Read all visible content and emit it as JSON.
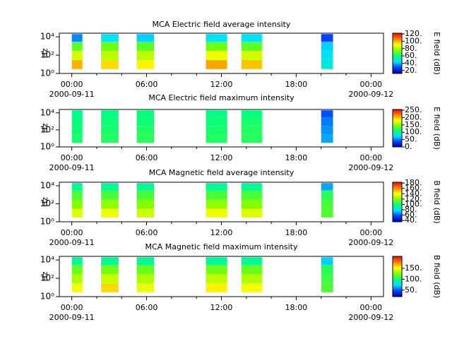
{
  "chart_data": [
    {
      "type": "spectrogram",
      "title": "MCA  Electric field average intensity",
      "ylabel": "Hz",
      "colorbar_label": "E field (dB)",
      "xlim": [
        -1,
        25
      ],
      "xticks": [
        {
          "value": 0,
          "label": "00:00"
        },
        {
          "value": 6,
          "label": "06:00"
        },
        {
          "value": 12,
          "label": "12:00"
        },
        {
          "value": 18,
          "label": "18:00"
        },
        {
          "value": 24,
          "label": "00:00"
        }
      ],
      "x_minor_ticks": [
        2,
        4,
        8,
        10,
        14,
        16,
        20,
        22
      ],
      "x_date_labels": [
        {
          "value": 0,
          "label": "2000-09-11"
        },
        {
          "value": 24,
          "label": "2000-09-12"
        }
      ],
      "ylim": [
        1,
        25000
      ],
      "yticks": [
        {
          "value": 1,
          "label": "10⁰"
        },
        {
          "value": 100,
          "label": "10²"
        },
        {
          "value": 10000,
          "label": "10⁴"
        }
      ],
      "clim": [
        12,
        122
      ],
      "cticks": [
        {
          "value": 20,
          "label": "20."
        },
        {
          "value": 40,
          "label": "40."
        },
        {
          "value": 60,
          "label": "60."
        },
        {
          "value": 80,
          "label": "80."
        },
        {
          "value": 100,
          "label": "100."
        },
        {
          "value": 120,
          "label": "120."
        }
      ],
      "colormap": [
        "#0000b0",
        "#0040ff",
        "#00e0ff",
        "#00ff80",
        "#80ff00",
        "#ffff00",
        "#ff8000",
        "#ff0000"
      ],
      "blocks": [
        [
          0,
          0.85
        ],
        [
          2.35,
          3.75
        ],
        [
          5.2,
          6.6
        ],
        [
          10.75,
          12.45
        ],
        [
          13.6,
          15.25
        ],
        [
          20,
          20.95
        ]
      ],
      "y_bins": [
        3,
        30,
        300,
        3000,
        20000
      ],
      "values": [
        [
          100,
          85,
          70,
          35
        ],
        [
          95,
          82,
          72,
          45
        ],
        [
          92,
          82,
          70,
          42
        ],
        [
          102,
          88,
          72,
          45
        ],
        [
          98,
          85,
          70,
          45
        ],
        [
          48,
          45,
          42,
          28
        ]
      ]
    },
    {
      "type": "spectrogram",
      "title": "MCA  Electric field maximum intensity",
      "ylabel": "Hz",
      "colorbar_label": "E field (dB)",
      "xlim": [
        -1,
        25
      ],
      "xticks": [
        {
          "value": 0,
          "label": "00:00"
        },
        {
          "value": 6,
          "label": "06:00"
        },
        {
          "value": 12,
          "label": "12:00"
        },
        {
          "value": 18,
          "label": "18:00"
        },
        {
          "value": 24,
          "label": "00:00"
        }
      ],
      "x_minor_ticks": [
        2,
        4,
        8,
        10,
        14,
        16,
        20,
        22
      ],
      "x_date_labels": [
        {
          "value": 0,
          "label": "2000-09-11"
        },
        {
          "value": 24,
          "label": "2000-09-12"
        }
      ],
      "ylim": [
        1,
        25000
      ],
      "yticks": [
        {
          "value": 1,
          "label": "10⁰"
        },
        {
          "value": 100,
          "label": "10²"
        },
        {
          "value": 10000,
          "label": "10⁴"
        }
      ],
      "clim": [
        0,
        255
      ],
      "cticks": [
        {
          "value": 0,
          "label": "0."
        },
        {
          "value": 50,
          "label": "50."
        },
        {
          "value": 100,
          "label": "100."
        },
        {
          "value": 150,
          "label": "150."
        },
        {
          "value": 200,
          "label": "200."
        },
        {
          "value": 250,
          "label": "250."
        }
      ],
      "colormap": [
        "#0000b0",
        "#0040ff",
        "#00e0ff",
        "#00ff80",
        "#80ff00",
        "#ffff00",
        "#ff8000",
        "#ff0000"
      ],
      "blocks": [
        [
          0,
          0.85
        ],
        [
          2.35,
          3.75
        ],
        [
          5.2,
          6.6
        ],
        [
          10.75,
          12.45
        ],
        [
          13.6,
          15.25
        ],
        [
          20,
          20.95
        ]
      ],
      "y_bins": [
        3,
        30,
        300,
        3000,
        20000
      ],
      "values": [
        [
          115,
          112,
          110,
          105
        ],
        [
          118,
          115,
          112,
          108
        ],
        [
          120,
          118,
          112,
          110
        ],
        [
          118,
          115,
          112,
          108
        ],
        [
          120,
          118,
          115,
          110
        ],
        [
          60,
          55,
          50,
          40
        ]
      ]
    },
    {
      "type": "spectrogram",
      "title": "MCA  Magnetic field average intensity",
      "ylabel": "Hz",
      "colorbar_label": "B field (dB)",
      "xlim": [
        -1,
        25
      ],
      "xticks": [
        {
          "value": 0,
          "label": "00:00"
        },
        {
          "value": 6,
          "label": "06:00"
        },
        {
          "value": 12,
          "label": "12:00"
        },
        {
          "value": 18,
          "label": "18:00"
        },
        {
          "value": 24,
          "label": "00:00"
        }
      ],
      "x_minor_ticks": [
        2,
        4,
        8,
        10,
        14,
        16,
        20,
        22
      ],
      "x_date_labels": [
        {
          "value": 0,
          "label": "2000-09-11"
        },
        {
          "value": 24,
          "label": "2000-09-12"
        }
      ],
      "ylim": [
        1,
        25000
      ],
      "yticks": [
        {
          "value": 1,
          "label": "10⁰"
        },
        {
          "value": 100,
          "label": "10²"
        },
        {
          "value": 10000,
          "label": "10⁴"
        }
      ],
      "clim": [
        35,
        183
      ],
      "cticks": [
        {
          "value": 40,
          "label": "40."
        },
        {
          "value": 60,
          "label": "60."
        },
        {
          "value": 80,
          "label": "80."
        },
        {
          "value": 100,
          "label": "100."
        },
        {
          "value": 120,
          "label": "120."
        },
        {
          "value": 140,
          "label": "140."
        },
        {
          "value": 160,
          "label": "160."
        },
        {
          "value": 180,
          "label": "180."
        }
      ],
      "colormap": [
        "#0000b0",
        "#0040ff",
        "#00e0ff",
        "#00ff80",
        "#80ff00",
        "#ffff00",
        "#ff8000",
        "#ff0000"
      ],
      "blocks": [
        [
          0,
          0.85
        ],
        [
          2.35,
          3.75
        ],
        [
          5.2,
          6.6
        ],
        [
          10.75,
          12.45
        ],
        [
          13.6,
          15.25
        ],
        [
          20,
          20.95
        ]
      ],
      "y_bins": [
        3,
        30,
        300,
        3000,
        20000
      ],
      "values": [
        [
          135,
          120,
          110,
          95
        ],
        [
          138,
          122,
          110,
          95
        ],
        [
          132,
          120,
          110,
          95
        ],
        [
          138,
          122,
          110,
          95
        ],
        [
          135,
          120,
          110,
          95
        ],
        [
          112,
          110,
          105,
          70
        ]
      ]
    },
    {
      "type": "spectrogram",
      "title": "MCA  Magnetic field maximum intensity",
      "ylabel": "Hz",
      "colorbar_label": "B field (dB)",
      "xlim": [
        -1,
        25
      ],
      "xticks": [
        {
          "value": 0,
          "label": "00:00"
        },
        {
          "value": 6,
          "label": "06:00"
        },
        {
          "value": 12,
          "label": "12:00"
        },
        {
          "value": 18,
          "label": "18:00"
        },
        {
          "value": 24,
          "label": "00:00"
        }
      ],
      "x_minor_ticks": [
        2,
        4,
        8,
        10,
        14,
        16,
        20,
        22
      ],
      "x_date_labels": [
        {
          "value": 0,
          "label": "2000-09-11"
        },
        {
          "value": 24,
          "label": "2000-09-12"
        }
      ],
      "ylim": [
        1,
        25000
      ],
      "yticks": [
        {
          "value": 1,
          "label": "10⁰"
        },
        {
          "value": 100,
          "label": "10²"
        },
        {
          "value": 10000,
          "label": "10⁴"
        }
      ],
      "clim": [
        20,
        205
      ],
      "cticks": [
        {
          "value": 50,
          "label": "50."
        },
        {
          "value": 100,
          "label": "100."
        },
        {
          "value": 150,
          "label": "150."
        }
      ],
      "colormap": [
        "#0000b0",
        "#0040ff",
        "#00e0ff",
        "#00ff80",
        "#80ff00",
        "#ffff00",
        "#ff8000",
        "#ff0000"
      ],
      "blocks": [
        [
          0,
          0.85
        ],
        [
          2.35,
          3.75
        ],
        [
          5.2,
          6.6
        ],
        [
          10.75,
          12.45
        ],
        [
          13.6,
          15.25
        ],
        [
          20,
          20.95
        ]
      ],
      "y_bins": [
        3,
        30,
        300,
        3000,
        20000
      ],
      "values": [
        [
          150,
          135,
          120,
          95
        ],
        [
          160,
          140,
          122,
          95
        ],
        [
          148,
          135,
          120,
          95
        ],
        [
          155,
          138,
          122,
          95
        ],
        [
          150,
          135,
          120,
          95
        ],
        [
          115,
          112,
          108,
          70
        ]
      ]
    }
  ]
}
